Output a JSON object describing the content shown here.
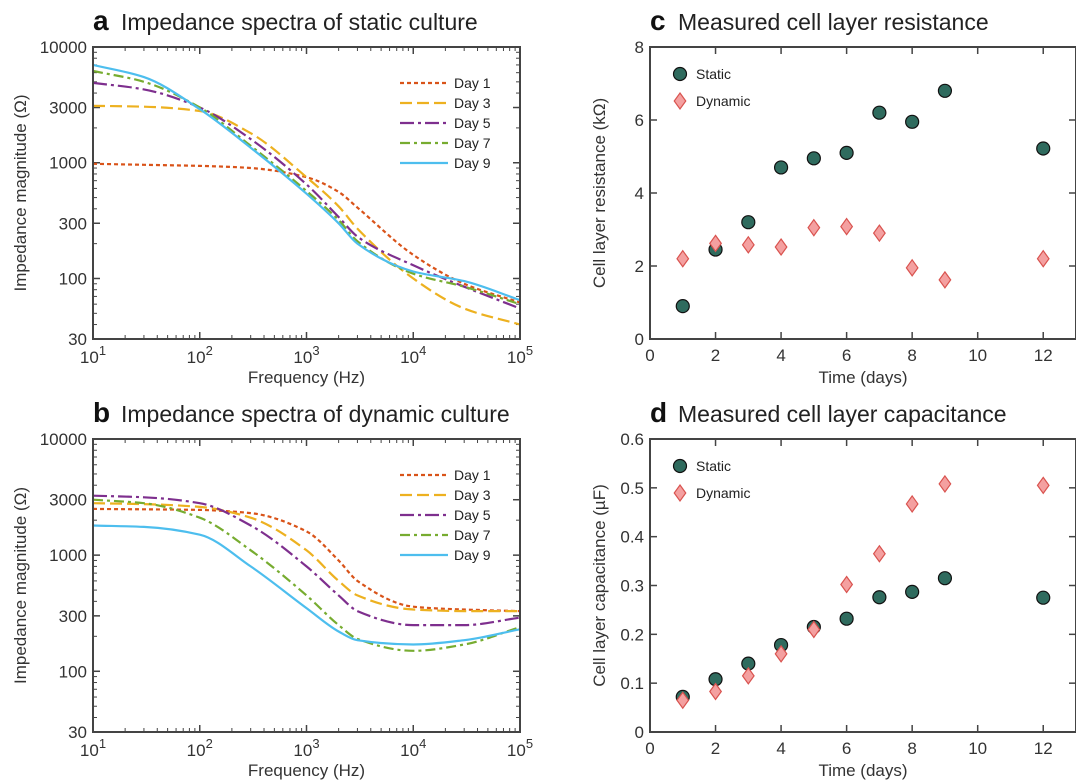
{
  "colors": {
    "day1": "#d95319",
    "day3": "#edb120",
    "day5": "#7e2f8e",
    "day7": "#77ac30",
    "day9": "#4dbeee",
    "static": "#2f6b5e",
    "dynamic": "#f4a0a0",
    "dynamic_edge": "#d9534f"
  },
  "chart_data": [
    {
      "id": "a",
      "type": "line",
      "letter": "a",
      "title": "Impedance spectra of static culture",
      "xlabel": "Frequency (Hz)",
      "ylabel": "Impedance magnitude (Ω)",
      "xscale": "log",
      "yscale": "log",
      "xlim": [
        10,
        100000
      ],
      "ylim": [
        30,
        10000
      ],
      "xticks": [
        {
          "value": 10,
          "base": "10",
          "exp": "1"
        },
        {
          "value": 100,
          "base": "10",
          "exp": "2"
        },
        {
          "value": 1000,
          "base": "10",
          "exp": "3"
        },
        {
          "value": 10000,
          "base": "10",
          "exp": "4"
        },
        {
          "value": 100000,
          "base": "10",
          "exp": "5"
        }
      ],
      "yticks": [
        {
          "value": 30,
          "label": "30"
        },
        {
          "value": 100,
          "label": "100"
        },
        {
          "value": 300,
          "label": "300"
        },
        {
          "value": 1000,
          "label": "1000"
        },
        {
          "value": 3000,
          "label": "3000"
        },
        {
          "value": 10000,
          "label": "10000"
        }
      ],
      "legend_position": "top-right",
      "series": [
        {
          "name": "Day 1",
          "color_key": "day1",
          "dash": "4,3",
          "x": [
            10,
            30,
            100,
            300,
            1000,
            2000,
            3000,
            10000,
            30000,
            100000
          ],
          "y": [
            980,
            960,
            940,
            900,
            750,
            560,
            410,
            160,
            90,
            62
          ]
        },
        {
          "name": "Day 3",
          "color_key": "day3",
          "dash": "12,5",
          "x": [
            10,
            30,
            100,
            300,
            1000,
            2000,
            3000,
            10000,
            30000,
            100000
          ],
          "y": [
            3100,
            3050,
            2800,
            1800,
            750,
            420,
            270,
            100,
            55,
            40
          ]
        },
        {
          "name": "Day 5",
          "color_key": "day5",
          "dash": "14,4,3,4",
          "x": [
            10,
            30,
            100,
            300,
            1000,
            2000,
            3000,
            10000,
            30000,
            100000
          ],
          "y": [
            4900,
            4300,
            3000,
            1600,
            650,
            340,
            230,
            130,
            85,
            55
          ]
        },
        {
          "name": "Day 7",
          "color_key": "day7",
          "dash": "10,4,3,4",
          "x": [
            10,
            30,
            100,
            300,
            1000,
            2000,
            3000,
            10000,
            30000,
            100000
          ],
          "y": [
            6200,
            5000,
            3000,
            1400,
            570,
            320,
            210,
            110,
            85,
            60
          ]
        },
        {
          "name": "Day 9",
          "color_key": "day9",
          "dash": "",
          "x": [
            10,
            30,
            100,
            300,
            1000,
            2000,
            3000,
            10000,
            30000,
            100000
          ],
          "y": [
            7000,
            5500,
            2900,
            1350,
            540,
            300,
            200,
            115,
            95,
            65
          ]
        }
      ]
    },
    {
      "id": "b",
      "type": "line",
      "letter": "b",
      "title": "Impedance spectra of dynamic culture",
      "xlabel": "Frequency (Hz)",
      "ylabel": "Impedance magnitude (Ω)",
      "xscale": "log",
      "yscale": "log",
      "xlim": [
        10,
        100000
      ],
      "ylim": [
        30,
        10000
      ],
      "xticks": [
        {
          "value": 10,
          "base": "10",
          "exp": "1"
        },
        {
          "value": 100,
          "base": "10",
          "exp": "2"
        },
        {
          "value": 1000,
          "base": "10",
          "exp": "3"
        },
        {
          "value": 10000,
          "base": "10",
          "exp": "4"
        },
        {
          "value": 100000,
          "base": "10",
          "exp": "5"
        }
      ],
      "yticks": [
        {
          "value": 30,
          "label": "30"
        },
        {
          "value": 100,
          "label": "100"
        },
        {
          "value": 300,
          "label": "300"
        },
        {
          "value": 1000,
          "label": "1000"
        },
        {
          "value": 3000,
          "label": "3000"
        },
        {
          "value": 10000,
          "label": "10000"
        }
      ],
      "legend_position": "top-right",
      "series": [
        {
          "name": "Day 1",
          "color_key": "day1",
          "dash": "4,3",
          "x": [
            10,
            30,
            100,
            300,
            1000,
            2000,
            3000,
            10000,
            30000,
            100000
          ],
          "y": [
            2500,
            2480,
            2450,
            2300,
            1600,
            900,
            600,
            360,
            340,
            330
          ]
        },
        {
          "name": "Day 3",
          "color_key": "day3",
          "dash": "12,5",
          "x": [
            10,
            30,
            100,
            300,
            1000,
            2000,
            3000,
            10000,
            30000,
            100000
          ],
          "y": [
            2800,
            2750,
            2600,
            2100,
            1100,
            600,
            450,
            340,
            330,
            330
          ]
        },
        {
          "name": "Day 5",
          "color_key": "day5",
          "dash": "14,4,3,4",
          "x": [
            10,
            30,
            100,
            300,
            1000,
            2000,
            3000,
            10000,
            30000,
            100000
          ],
          "y": [
            3250,
            3150,
            2800,
            1800,
            800,
            450,
            330,
            250,
            250,
            290
          ]
        },
        {
          "name": "Day 7",
          "color_key": "day7",
          "dash": "10,4,3,4",
          "x": [
            10,
            30,
            100,
            300,
            1000,
            2000,
            3000,
            10000,
            30000,
            100000
          ],
          "y": [
            3000,
            2800,
            2100,
            1100,
            450,
            250,
            190,
            150,
            170,
            240
          ]
        },
        {
          "name": "Day 9",
          "color_key": "day9",
          "dash": "",
          "x": [
            10,
            30,
            100,
            300,
            1000,
            2000,
            3000,
            10000,
            30000,
            100000
          ],
          "y": [
            1800,
            1750,
            1500,
            800,
            350,
            220,
            185,
            170,
            185,
            230
          ]
        }
      ]
    },
    {
      "id": "c",
      "type": "scatter",
      "letter": "c",
      "title": "Measured cell layer resistance",
      "xlabel": "Time (days)",
      "ylabel": "Cell layer resistance (kΩ)",
      "xscale": "linear",
      "yscale": "linear",
      "xlim": [
        0,
        13
      ],
      "ylim": [
        0,
        8
      ],
      "xticks": [
        {
          "value": 0,
          "label": "0"
        },
        {
          "value": 2,
          "label": "2"
        },
        {
          "value": 4,
          "label": "4"
        },
        {
          "value": 6,
          "label": "6"
        },
        {
          "value": 8,
          "label": "8"
        },
        {
          "value": 10,
          "label": "10"
        },
        {
          "value": 12,
          "label": "12"
        }
      ],
      "yticks": [
        {
          "value": 0,
          "label": "0"
        },
        {
          "value": 2,
          "label": "2"
        },
        {
          "value": 4,
          "label": "4"
        },
        {
          "value": 6,
          "label": "6"
        },
        {
          "value": 8,
          "label": "8"
        }
      ],
      "legend_position": "top-left",
      "series": [
        {
          "name": "Static",
          "marker": "circle",
          "color_key": "static",
          "x": [
            1,
            2,
            3,
            4,
            5,
            6,
            7,
            8,
            9,
            12
          ],
          "y": [
            0.9,
            2.45,
            3.2,
            4.7,
            4.95,
            5.1,
            6.2,
            5.95,
            6.8,
            5.22
          ]
        },
        {
          "name": "Dynamic",
          "marker": "diamond",
          "color_key": "dynamic",
          "x": [
            1,
            2,
            3,
            4,
            5,
            6,
            7,
            8,
            9,
            12
          ],
          "y": [
            2.2,
            2.62,
            2.58,
            2.52,
            3.05,
            3.08,
            2.9,
            1.95,
            1.62,
            2.2
          ]
        }
      ]
    },
    {
      "id": "d",
      "type": "scatter",
      "letter": "d",
      "title": "Measured cell layer capacitance",
      "xlabel": "Time (days)",
      "ylabel": "Cell layer capacitance (µF)",
      "xscale": "linear",
      "yscale": "linear",
      "xlim": [
        0,
        13
      ],
      "ylim": [
        0,
        0.6
      ],
      "xticks": [
        {
          "value": 0,
          "label": "0"
        },
        {
          "value": 2,
          "label": "2"
        },
        {
          "value": 4,
          "label": "4"
        },
        {
          "value": 6,
          "label": "6"
        },
        {
          "value": 8,
          "label": "8"
        },
        {
          "value": 10,
          "label": "10"
        },
        {
          "value": 12,
          "label": "12"
        }
      ],
      "yticks": [
        {
          "value": 0,
          "label": "0"
        },
        {
          "value": 0.1,
          "label": "0.1"
        },
        {
          "value": 0.2,
          "label": "0.2"
        },
        {
          "value": 0.3,
          "label": "0.3"
        },
        {
          "value": 0.4,
          "label": "0.4"
        },
        {
          "value": 0.5,
          "label": "0.5"
        },
        {
          "value": 0.6,
          "label": "0.6"
        }
      ],
      "legend_position": "top-left",
      "series": [
        {
          "name": "Static",
          "marker": "circle",
          "color_key": "static",
          "x": [
            1,
            2,
            3,
            4,
            5,
            6,
            7,
            8,
            9,
            12
          ],
          "y": [
            0.072,
            0.108,
            0.14,
            0.178,
            0.215,
            0.232,
            0.276,
            0.287,
            0.315,
            0.275
          ]
        },
        {
          "name": "Dynamic",
          "marker": "diamond",
          "color_key": "dynamic",
          "x": [
            1,
            2,
            3,
            4,
            5,
            6,
            7,
            8,
            9,
            12
          ],
          "y": [
            0.065,
            0.083,
            0.115,
            0.16,
            0.21,
            0.302,
            0.365,
            0.467,
            0.508,
            0.505
          ]
        }
      ]
    }
  ]
}
